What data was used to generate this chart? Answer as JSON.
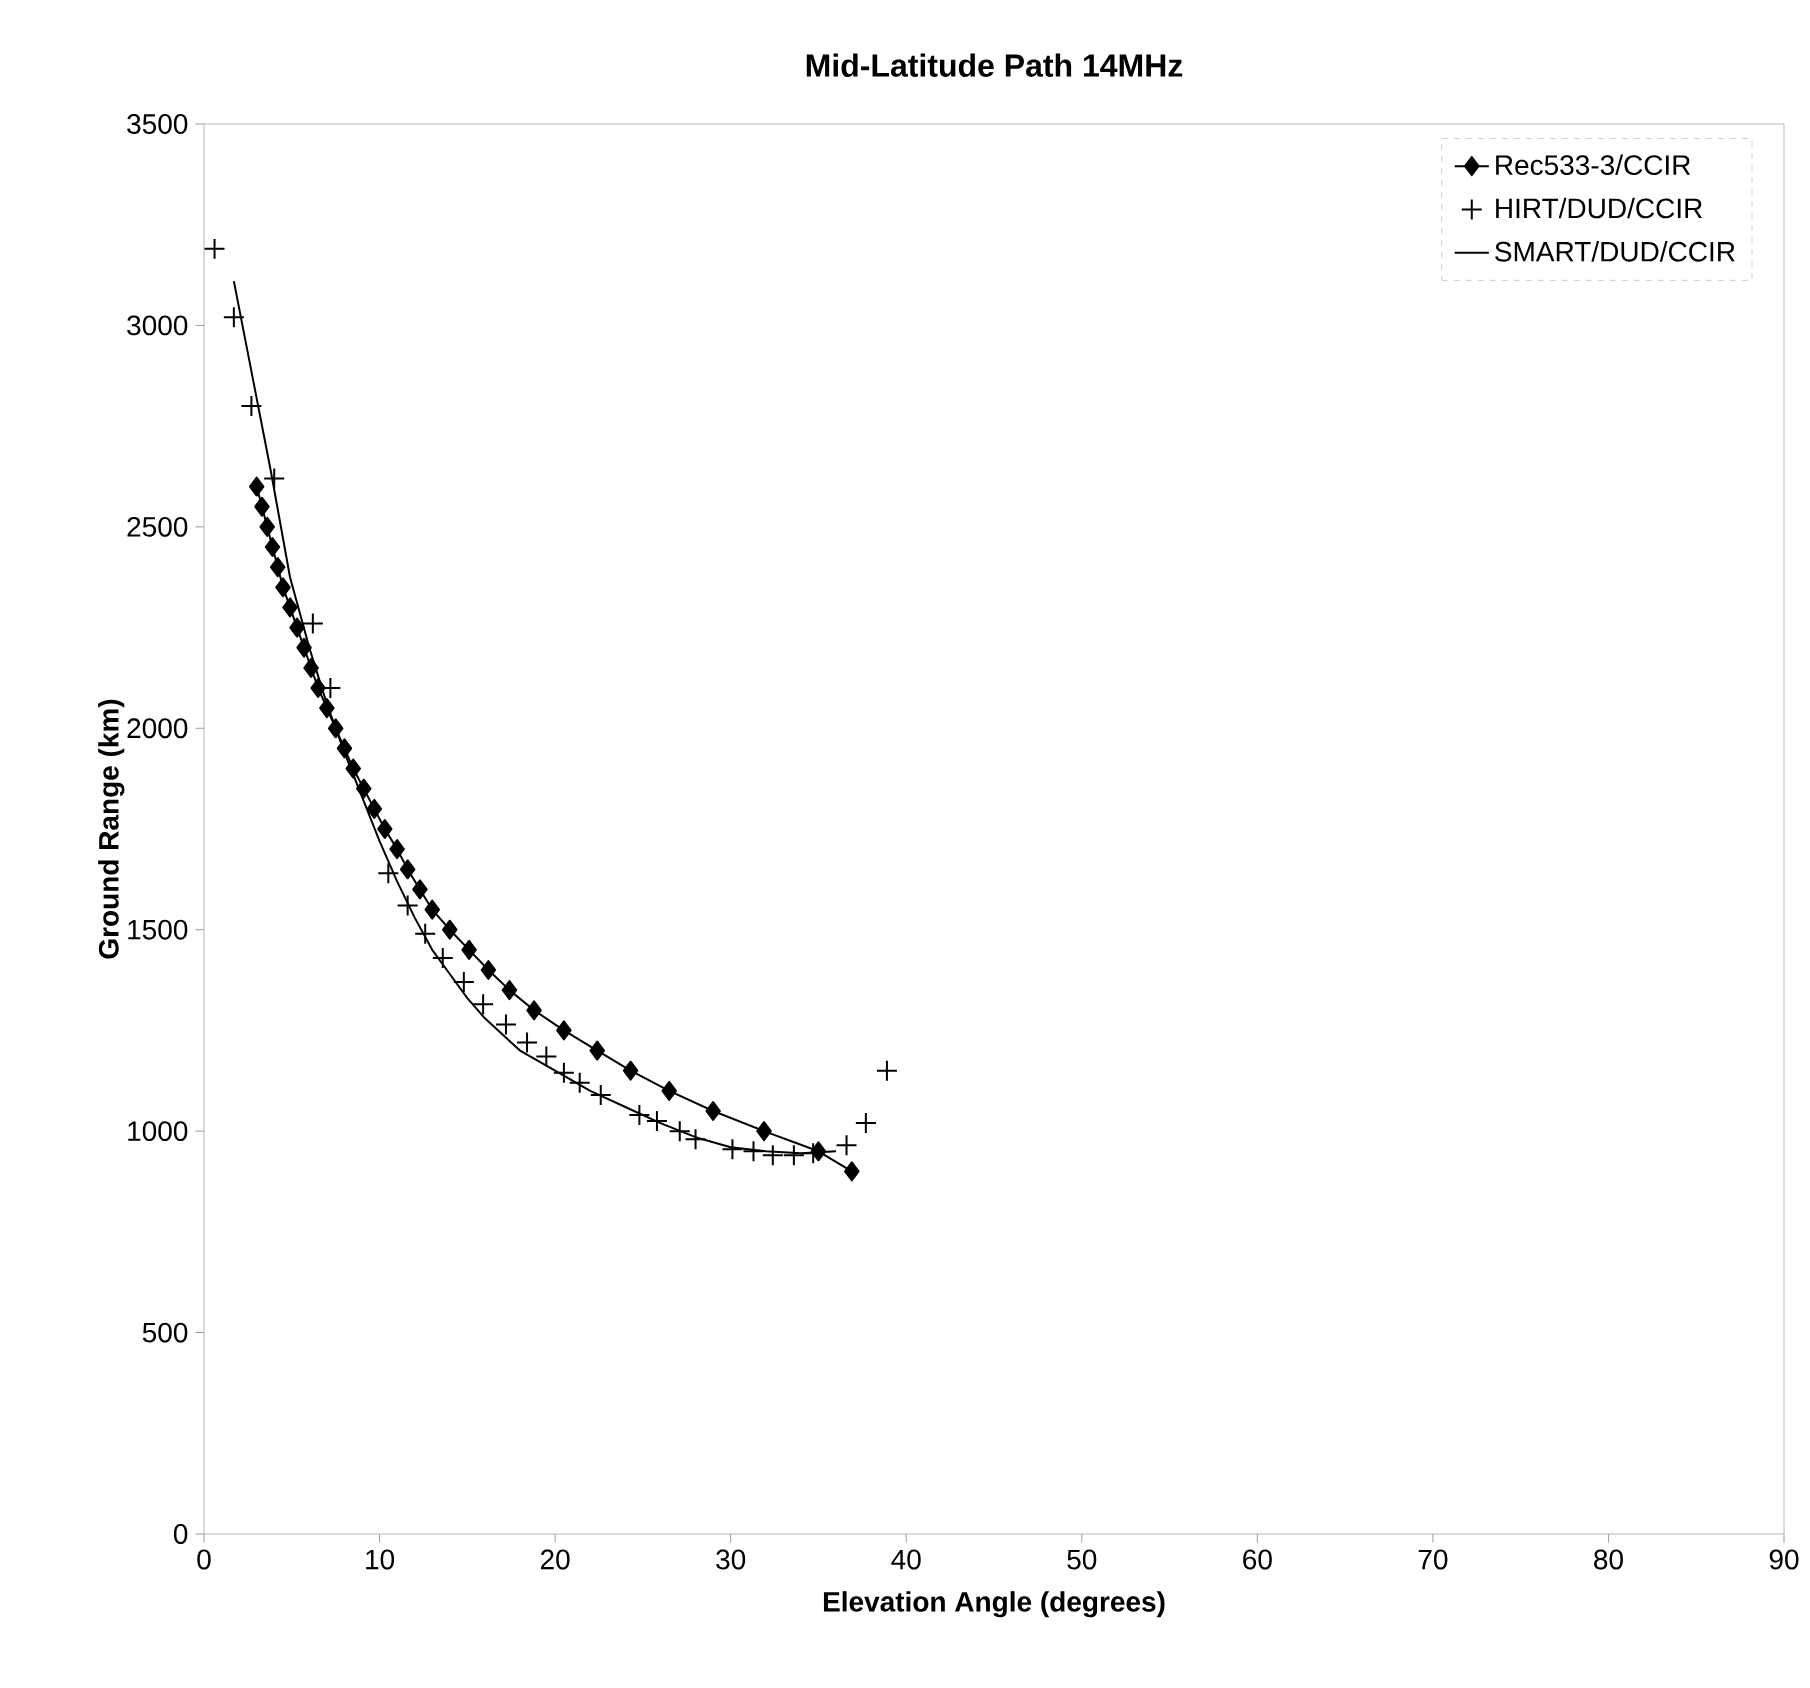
{
  "chart_data": {
    "type": "line",
    "title": "Mid-Latitude Path   14MHz",
    "xlabel": "Elevation Angle (degrees)",
    "ylabel": "Ground Range (km)",
    "xlim": [
      0,
      90
    ],
    "xticks": [
      0,
      10,
      20,
      30,
      40,
      50,
      60,
      70,
      80,
      90
    ],
    "ylim": [
      0,
      3500
    ],
    "yticks": [
      0,
      500,
      1000,
      1500,
      2000,
      2500,
      3000,
      3500
    ],
    "grid": false,
    "legend": "top right",
    "series": [
      {
        "name": "Rec533-3/CCIR",
        "marker": "diamond",
        "line_style": "solid",
        "color": "#000000",
        "x": [
          3.0,
          3.3,
          3.6,
          3.9,
          4.2,
          4.5,
          4.9,
          5.3,
          5.7,
          6.1,
          6.5,
          7.0,
          7.5,
          8.0,
          8.5,
          9.1,
          9.7,
          10.3,
          11.0,
          11.6,
          12.3,
          13.0,
          14.0,
          15.1,
          16.2,
          17.4,
          18.8,
          20.5,
          22.4,
          24.3,
          26.5,
          29.0,
          31.9,
          35.0,
          36.9
        ],
        "values": [
          2600,
          2550,
          2500,
          2450,
          2400,
          2350,
          2300,
          2250,
          2200,
          2150,
          2100,
          2050,
          2000,
          1950,
          1900,
          1850,
          1800,
          1750,
          1700,
          1650,
          1600,
          1550,
          1500,
          1450,
          1400,
          1350,
          1300,
          1250,
          1200,
          1150,
          1100,
          1050,
          1000,
          950,
          900
        ]
      },
      {
        "name": "HIRT/DUD/CCIR",
        "type": "scatter",
        "marker": "cross",
        "color": "#000000",
        "x": [
          0.6,
          1.7,
          2.7,
          4.0,
          6.2,
          7.2,
          10.5,
          11.6,
          12.6,
          13.6,
          14.8,
          15.9,
          17.2,
          18.4,
          19.5,
          20.5,
          21.4,
          22.6,
          24.8,
          25.8,
          27.1,
          28.0,
          30.1,
          31.3,
          32.4,
          33.6,
          34.7,
          36.6,
          37.7,
          38.9
        ],
        "values": [
          3190,
          3020,
          2800,
          2620,
          2260,
          2100,
          1640,
          1560,
          1490,
          1430,
          1370,
          1315,
          1265,
          1220,
          1185,
          1145,
          1120,
          1090,
          1040,
          1025,
          1000,
          980,
          955,
          950,
          940,
          940,
          945,
          965,
          1020,
          1150
        ]
      },
      {
        "name": "SMART/DUD/CCIR",
        "marker": "none",
        "line_style": "solid",
        "color": "#000000",
        "x": [
          1.7,
          3.8,
          4.9,
          6.0,
          7.0,
          8.0,
          9.0,
          10.0,
          11.0,
          12.0,
          13.0,
          14.0,
          15.0,
          16.0,
          17.0,
          18.0,
          20.0,
          22.0,
          24.0,
          26.0,
          28.0,
          30.0,
          32.0,
          34.0,
          36.0
        ],
        "values": [
          3110,
          2640,
          2375,
          2200,
          2060,
          1940,
          1830,
          1720,
          1620,
          1530,
          1450,
          1390,
          1330,
          1280,
          1240,
          1200,
          1150,
          1100,
          1060,
          1020,
          985,
          960,
          950,
          945,
          950
        ]
      }
    ]
  }
}
